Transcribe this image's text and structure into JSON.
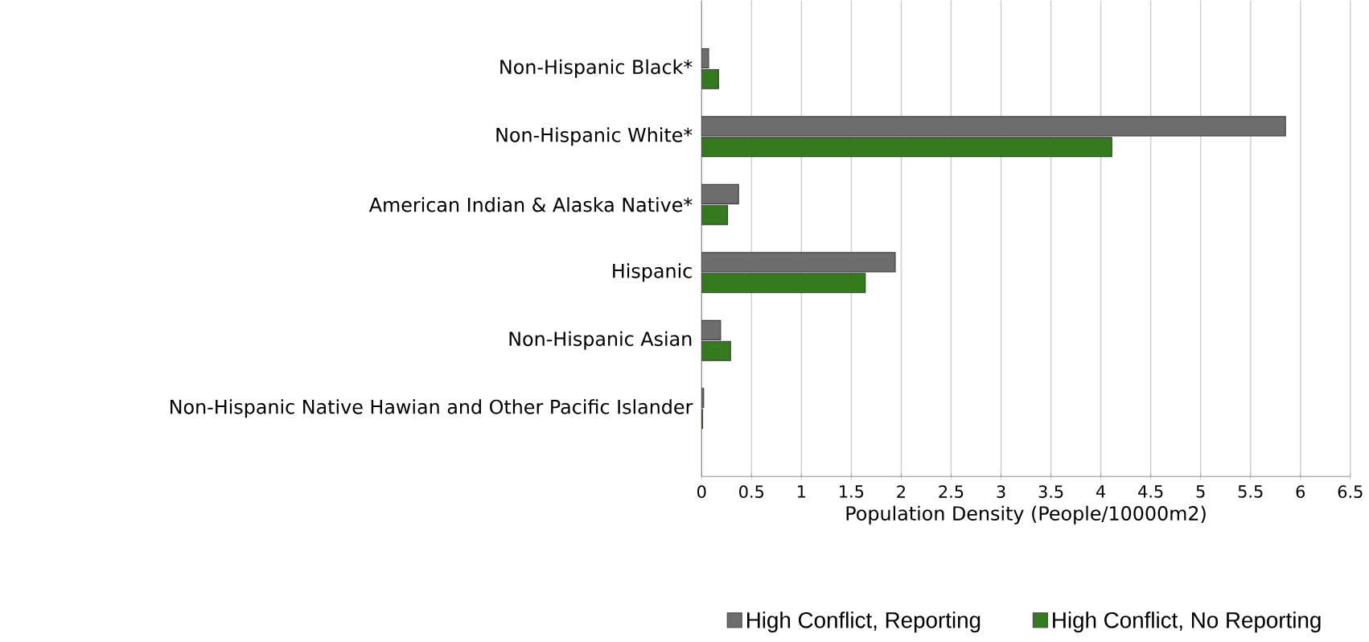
{
  "chart_data": {
    "type": "bar",
    "orientation": "horizontal",
    "xlabel": "Population Density (People/10000m2)",
    "categories": [
      "Non-Hispanic Black*",
      "Non-Hispanic White*",
      "American Indian & Alaska Native*",
      "Hispanic",
      "Non-Hispanic Asian",
      "Non-Hispanic Native Hawian and Other Pacific Islander"
    ],
    "series": [
      {
        "name": "High Conflict, Reporting",
        "color": "#6d6d6d",
        "values": [
          0.07,
          5.85,
          0.37,
          1.94,
          0.19,
          0.02
        ]
      },
      {
        "name": "High Conflict, No Reporting",
        "color": "#367a1f",
        "values": [
          0.17,
          4.11,
          0.26,
          1.64,
          0.29,
          0.01
        ]
      }
    ],
    "xlim": [
      0,
      6.5
    ],
    "xticks": [
      0,
      0.5,
      1,
      1.5,
      2,
      2.5,
      3,
      3.5,
      4,
      4.5,
      5,
      5.5,
      6,
      6.5
    ],
    "grid": "x",
    "legend": "bottom"
  }
}
